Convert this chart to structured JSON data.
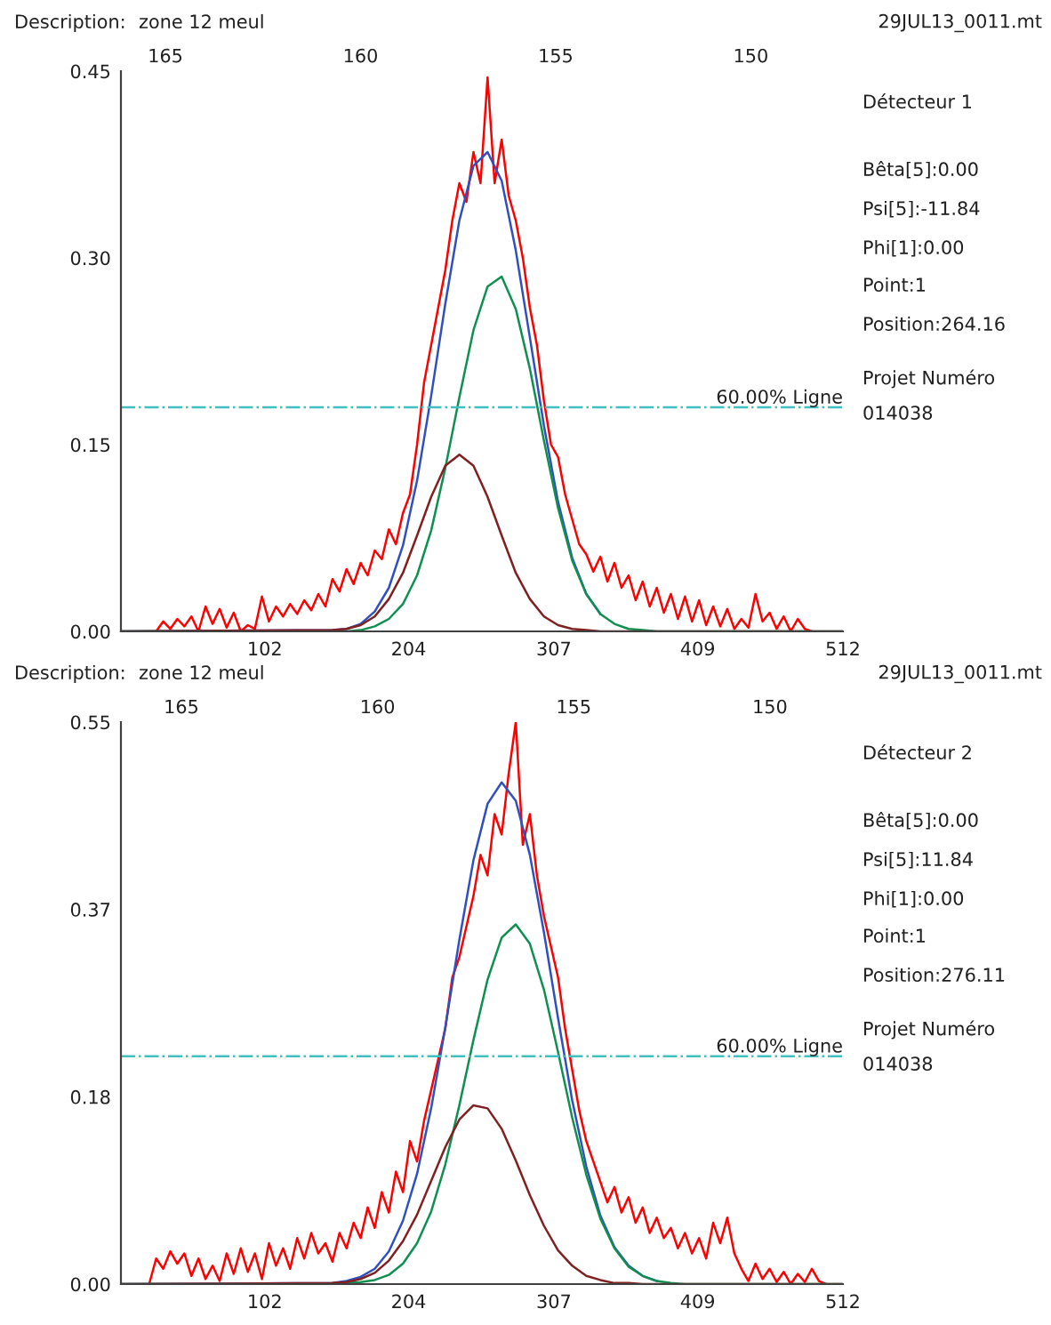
{
  "chart_data": [
    {
      "type": "line",
      "xlim": [
        0,
        512
      ],
      "xticks": [
        102,
        204,
        307,
        409,
        512
      ],
      "x2lim": [
        166.14,
        147.64
      ],
      "x2ticks": [
        165,
        160,
        155,
        150
      ],
      "ylim": [
        0,
        0.45
      ],
      "yticks": [
        {
          "value": 0,
          "label": "0.00"
        },
        {
          "value": 0.15,
          "label": "0.15"
        },
        {
          "value": 0.3,
          "label": "0.30"
        },
        {
          "value": 0.45,
          "label": "0.45"
        }
      ],
      "ref_lines": [
        {
          "axis": "y",
          "value": 0.18,
          "label": "60.00% Ligne",
          "color": "#40c0c0",
          "line_style": "dashdot"
        }
      ],
      "annotations": [
        "Description:",
        "zone 12 meul",
        "29JUL13_0011.mt",
        "Détecteur 1",
        "Bêta[5]:0.00",
        "Psi[5]:-11.84",
        "Phi[1]:0.00",
        "Point:1",
        "Position:264.16",
        "Projet Numéro",
        "014038"
      ],
      "series": [
        {
          "color": "#ff0000",
          "x": [
            25,
            30,
            35,
            40,
            45,
            50,
            55,
            60,
            65,
            70,
            75,
            80,
            85,
            90,
            95,
            100,
            105,
            110,
            115,
            120,
            125,
            130,
            135,
            140,
            145,
            150,
            155,
            160,
            165,
            170,
            175,
            180,
            185,
            190,
            195,
            200,
            205,
            210,
            215,
            220,
            225,
            230,
            235,
            240,
            245,
            250,
            255,
            260,
            265,
            270,
            275,
            280,
            285,
            290,
            295,
            300,
            305,
            310,
            315,
            320,
            325,
            330,
            335,
            340,
            345,
            350,
            355,
            360,
            365,
            370,
            375,
            380,
            385,
            390,
            395,
            400,
            405,
            410,
            415,
            420,
            425,
            430,
            435,
            440,
            445,
            450,
            455,
            460,
            465,
            470,
            475,
            480,
            485,
            490
          ],
          "values": [
            0.0,
            0.008,
            0.002,
            0.01,
            0.004,
            0.012,
            0.0,
            0.02,
            0.006,
            0.018,
            0.003,
            0.015,
            0.0,
            0.005,
            0.002,
            0.028,
            0.008,
            0.02,
            0.012,
            0.022,
            0.014,
            0.025,
            0.017,
            0.03,
            0.02,
            0.042,
            0.032,
            0.05,
            0.038,
            0.055,
            0.045,
            0.065,
            0.058,
            0.082,
            0.07,
            0.095,
            0.11,
            0.15,
            0.2,
            0.23,
            0.26,
            0.29,
            0.33,
            0.36,
            0.345,
            0.385,
            0.36,
            0.445,
            0.36,
            0.395,
            0.35,
            0.33,
            0.3,
            0.26,
            0.23,
            0.185,
            0.15,
            0.14,
            0.11,
            0.09,
            0.07,
            0.062,
            0.048,
            0.06,
            0.04,
            0.055,
            0.035,
            0.045,
            0.025,
            0.04,
            0.02,
            0.035,
            0.015,
            0.03,
            0.01,
            0.028,
            0.008,
            0.025,
            0.005,
            0.02,
            0.004,
            0.018,
            0.002,
            0.01,
            0.003,
            0.03,
            0.008,
            0.015,
            0.002,
            0.012,
            0.0,
            0.01,
            0.002,
            0.0
          ]
        },
        {
          "color": "#3050c0",
          "x": [
            0,
            150,
            160,
            170,
            180,
            190,
            200,
            210,
            220,
            230,
            240,
            250,
            260,
            270,
            280,
            290,
            300,
            310,
            320,
            330,
            340
          ],
          "values": [
            0,
            0.001,
            0.002,
            0.006,
            0.016,
            0.035,
            0.069,
            0.121,
            0.189,
            0.263,
            0.33,
            0.374,
            0.385,
            0.362,
            0.306,
            0.236,
            0.165,
            0.104,
            0.059,
            0.03,
            0.014
          ]
        },
        {
          "color": "#109050",
          "x": [
            0,
            150,
            160,
            170,
            180,
            190,
            200,
            210,
            220,
            230,
            240,
            250,
            260,
            270,
            280,
            290,
            300,
            310,
            320,
            330,
            340,
            350,
            360,
            370,
            380,
            512
          ],
          "values": [
            0,
            0.0,
            0.0,
            0.001,
            0.004,
            0.01,
            0.022,
            0.045,
            0.081,
            0.131,
            0.188,
            0.242,
            0.277,
            0.285,
            0.259,
            0.211,
            0.153,
            0.099,
            0.057,
            0.03,
            0.014,
            0.006,
            0.002,
            0.001,
            0.0,
            0
          ]
        },
        {
          "color": "#802020",
          "x": [
            0,
            150,
            160,
            170,
            180,
            190,
            200,
            210,
            220,
            230,
            240,
            250,
            260,
            270,
            280,
            290,
            300,
            310,
            320,
            330,
            340,
            512
          ],
          "values": [
            0,
            0.001,
            0.002,
            0.005,
            0.012,
            0.026,
            0.047,
            0.077,
            0.108,
            0.133,
            0.142,
            0.133,
            0.108,
            0.077,
            0.047,
            0.026,
            0.012,
            0.005,
            0.002,
            0.001,
            0.0,
            0
          ]
        }
      ]
    },
    {
      "type": "line",
      "xlim": [
        0,
        512
      ],
      "xticks": [
        102,
        204,
        307,
        409,
        512
      ],
      "x2lim": [
        166.54,
        148.14
      ],
      "x2ticks": [
        165,
        160,
        155,
        150
      ],
      "ylim": [
        0,
        0.55
      ],
      "yticks": [
        {
          "value": 0,
          "label": "0.00"
        },
        {
          "value": 0.1833,
          "label": "0.18"
        },
        {
          "value": 0.3667,
          "label": "0.37"
        },
        {
          "value": 0.55,
          "label": "0.55"
        }
      ],
      "ref_lines": [
        {
          "axis": "y",
          "value": 0.223,
          "label": "60.00% Ligne",
          "color": "#40c0c0",
          "line_style": "dashdot"
        }
      ],
      "annotations": [
        "Description:",
        "zone 12 meul",
        "29JUL13_0011.mt",
        "Détecteur 2",
        "Bêta[5]:0.00",
        "Psi[5]:11.84",
        "Phi[1]:0.00",
        "Point:1",
        "Position:276.11",
        "Projet Numéro",
        "014038"
      ],
      "series": [
        {
          "color": "#ff0000",
          "x": [
            20,
            25,
            30,
            35,
            40,
            45,
            50,
            55,
            60,
            65,
            70,
            75,
            80,
            85,
            90,
            95,
            100,
            105,
            110,
            115,
            120,
            125,
            130,
            135,
            140,
            145,
            150,
            155,
            160,
            165,
            170,
            175,
            180,
            185,
            190,
            195,
            200,
            205,
            210,
            215,
            220,
            225,
            230,
            235,
            240,
            245,
            250,
            255,
            260,
            265,
            270,
            275,
            280,
            285,
            290,
            295,
            300,
            305,
            310,
            315,
            320,
            325,
            330,
            335,
            340,
            345,
            350,
            355,
            360,
            365,
            370,
            375,
            380,
            385,
            390,
            395,
            400,
            405,
            410,
            415,
            420,
            425,
            430,
            435,
            440,
            445,
            450,
            455,
            460,
            465,
            470,
            475,
            480,
            485,
            490,
            495,
            500
          ],
          "values": [
            0.0,
            0.025,
            0.015,
            0.032,
            0.02,
            0.03,
            0.008,
            0.025,
            0.005,
            0.018,
            0.003,
            0.03,
            0.01,
            0.035,
            0.012,
            0.03,
            0.005,
            0.04,
            0.018,
            0.035,
            0.015,
            0.045,
            0.025,
            0.05,
            0.03,
            0.04,
            0.022,
            0.05,
            0.035,
            0.06,
            0.045,
            0.075,
            0.055,
            0.09,
            0.07,
            0.11,
            0.09,
            0.14,
            0.12,
            0.16,
            0.19,
            0.22,
            0.25,
            0.3,
            0.32,
            0.35,
            0.38,
            0.42,
            0.4,
            0.46,
            0.44,
            0.5,
            0.55,
            0.43,
            0.46,
            0.4,
            0.36,
            0.33,
            0.3,
            0.25,
            0.21,
            0.17,
            0.14,
            0.12,
            0.1,
            0.08,
            0.095,
            0.07,
            0.085,
            0.06,
            0.075,
            0.05,
            0.065,
            0.045,
            0.055,
            0.035,
            0.05,
            0.03,
            0.045,
            0.025,
            0.06,
            0.04,
            0.065,
            0.03,
            0.015,
            0.003,
            0.02,
            0.005,
            0.015,
            0.002,
            0.012,
            0.0,
            0.01,
            0.002,
            0.015,
            0.003,
            0.0
          ]
        },
        {
          "color": "#3050c0",
          "x": [
            0,
            150,
            160,
            170,
            180,
            190,
            200,
            210,
            220,
            230,
            240,
            250,
            260,
            270,
            280,
            290,
            300,
            310,
            320,
            330,
            340,
            350,
            360,
            370,
            380
          ],
          "values": [
            0,
            0.001,
            0.003,
            0.007,
            0.015,
            0.032,
            0.062,
            0.108,
            0.172,
            0.251,
            0.337,
            0.415,
            0.47,
            0.491,
            0.473,
            0.42,
            0.344,
            0.26,
            0.18,
            0.115,
            0.067,
            0.036,
            0.018,
            0.008,
            0.003
          ]
        },
        {
          "color": "#109050",
          "x": [
            0,
            150,
            160,
            170,
            180,
            190,
            200,
            210,
            220,
            230,
            240,
            250,
            260,
            270,
            280,
            290,
            300,
            310,
            320,
            330,
            340,
            350,
            360,
            370,
            380,
            390,
            400,
            512
          ],
          "values": [
            0,
            0.0,
            0.001,
            0.002,
            0.004,
            0.009,
            0.02,
            0.04,
            0.071,
            0.117,
            0.175,
            0.239,
            0.298,
            0.339,
            0.352,
            0.333,
            0.288,
            0.227,
            0.163,
            0.107,
            0.064,
            0.035,
            0.017,
            0.008,
            0.003,
            0.001,
            0.0,
            0
          ]
        },
        {
          "color": "#802020",
          "x": [
            0,
            150,
            160,
            170,
            180,
            190,
            200,
            210,
            220,
            230,
            240,
            250,
            260,
            270,
            280,
            290,
            300,
            310,
            320,
            330,
            340,
            350,
            360,
            370,
            512
          ],
          "values": [
            0,
            0.001,
            0.002,
            0.005,
            0.011,
            0.023,
            0.042,
            0.068,
            0.101,
            0.134,
            0.161,
            0.175,
            0.172,
            0.152,
            0.121,
            0.087,
            0.057,
            0.033,
            0.018,
            0.008,
            0.004,
            0.001,
            0.001,
            0.0,
            0
          ]
        }
      ]
    }
  ]
}
